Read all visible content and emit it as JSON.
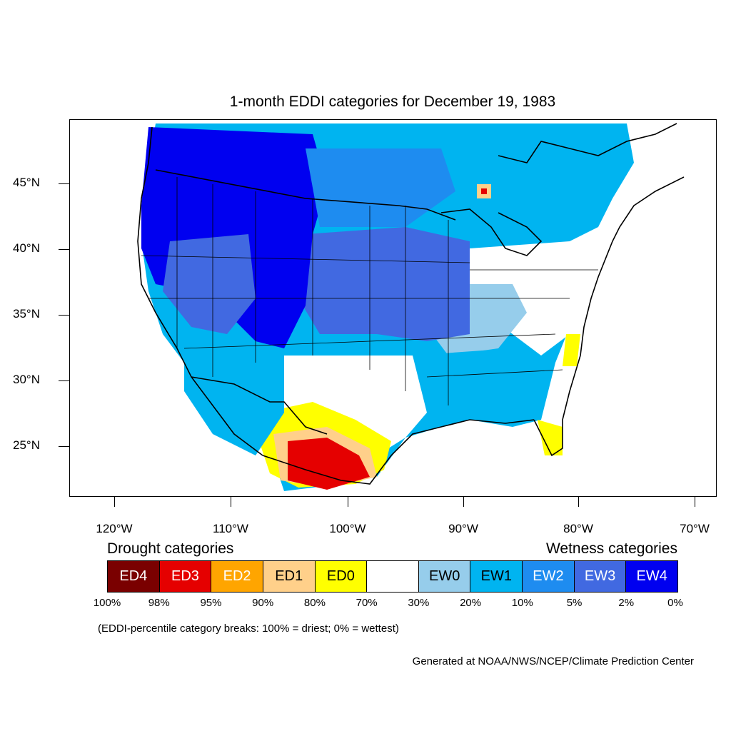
{
  "title": "1-month EDDI categories for December 19, 1983",
  "lat_labels": [
    "45°N",
    "40°N",
    "35°N",
    "30°N",
    "25°N"
  ],
  "lon_labels": [
    "120°W",
    "110°W",
    "100°W",
    "90°W",
    "80°W",
    "70°W"
  ],
  "legend": {
    "drought_heading": "Drought categories",
    "wetness_heading": "Wetness categories",
    "categories": [
      {
        "label": "ED4",
        "color": "#7a0000",
        "text_color": "#ffffff"
      },
      {
        "label": "ED3",
        "color": "#e50000",
        "text_color": "#ffffff"
      },
      {
        "label": "ED2",
        "color": "#ffa500",
        "text_color": "#ffffff"
      },
      {
        "label": "ED1",
        "color": "#ffd08a",
        "text_color": "#000000"
      },
      {
        "label": "ED0",
        "color": "#ffff00",
        "text_color": "#000000"
      },
      {
        "label": "",
        "color": "#ffffff",
        "text_color": "#000000"
      },
      {
        "label": "EW0",
        "color": "#96cdeb",
        "text_color": "#000000"
      },
      {
        "label": "EW1",
        "color": "#00b4f0",
        "text_color": "#000000"
      },
      {
        "label": "EW2",
        "color": "#1e8cf0",
        "text_color": "#ffffff"
      },
      {
        "label": "EW3",
        "color": "#4169e1",
        "text_color": "#ffffff"
      },
      {
        "label": "EW4",
        "color": "#0000f0",
        "text_color": "#ffffff"
      }
    ],
    "breaks": [
      "100%",
      "98%",
      "95%",
      "90%",
      "80%",
      "70%",
      "30%",
      "20%",
      "10%",
      "5%",
      "2%",
      "0%"
    ]
  },
  "note": "(EDDI-percentile category breaks: 100% = driest; 0% = wettest)",
  "credit": "Generated at NOAA/NWS/NCEP/Climate Prediction Center",
  "map_regions": [
    {
      "name": "northwest",
      "category": "EW4"
    },
    {
      "name": "great-basin",
      "category": "EW3"
    },
    {
      "name": "northern-rockies",
      "category": "EW4"
    },
    {
      "name": "great-plains",
      "category": "EW3"
    },
    {
      "name": "upper-midwest",
      "category": "EW1"
    },
    {
      "name": "ohio-valley",
      "category": "EW0"
    },
    {
      "name": "northeast",
      "category": "none"
    },
    {
      "name": "southeast",
      "category": "EW1"
    },
    {
      "name": "texas",
      "category": "ED0"
    },
    {
      "name": "northern-mexico",
      "category": "ED3"
    },
    {
      "name": "carolina-coast",
      "category": "ED0"
    },
    {
      "name": "florida",
      "category": "ED0"
    }
  ]
}
